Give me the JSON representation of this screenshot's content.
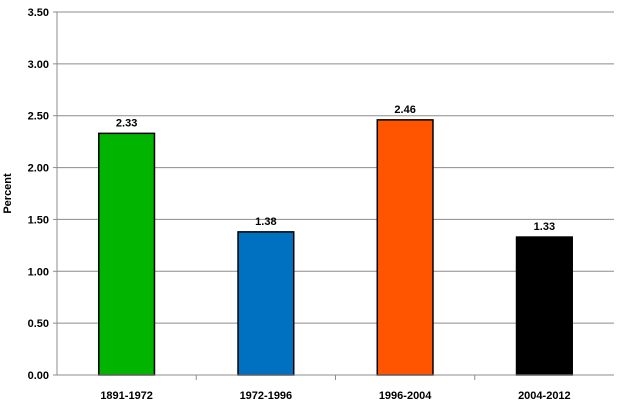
{
  "chart_data": {
    "type": "bar",
    "title": "",
    "xlabel": "",
    "ylabel": "Percent",
    "ylim": [
      0,
      3.5
    ],
    "yticks": [
      "0.00",
      "0.50",
      "1.00",
      "1.50",
      "2.00",
      "2.50",
      "3.00",
      "3.50"
    ],
    "categories": [
      "1891-1972",
      "1972-1996",
      "1996-2004",
      "2004-2012"
    ],
    "values": [
      2.33,
      1.38,
      2.46,
      1.33
    ],
    "value_labels": [
      "2.33",
      "1.38",
      "2.46",
      "1.33"
    ],
    "colors": [
      "#00b400",
      "#0070c0",
      "#ff5500",
      "#000000"
    ],
    "grid": true,
    "legend": "none"
  }
}
